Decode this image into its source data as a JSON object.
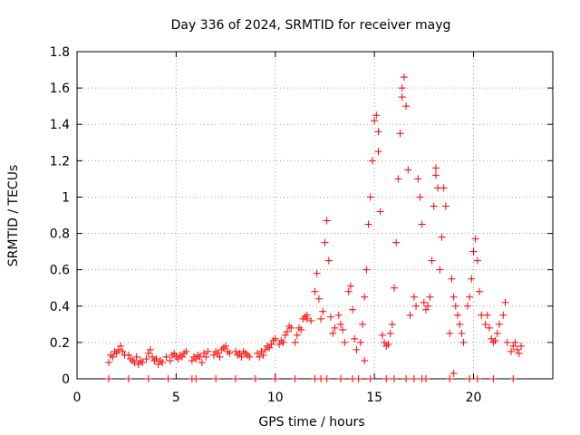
{
  "chart_data": {
    "type": "scatter",
    "title": "Day 336 of 2024, SRMTID for receiver mayg",
    "xlabel": "GPS time / hours",
    "ylabel": "SRMTID / TECUs",
    "xlim": [
      0,
      24
    ],
    "ylim": [
      0,
      1.8
    ],
    "xticks": [
      0,
      5,
      10,
      15,
      20
    ],
    "xtick_labels": [
      "0",
      "5",
      "10",
      "15",
      "20"
    ],
    "yticks": [
      0,
      0.2,
      0.4,
      0.6,
      0.8,
      1.0,
      1.2,
      1.4,
      1.6,
      1.8
    ],
    "ytick_labels": [
      "0",
      "0.2",
      "0.4",
      "0.6",
      "0.8",
      "1",
      "1.2",
      "1.4",
      "1.6",
      "1.8"
    ],
    "grid": true,
    "marker": "+",
    "colors": {
      "series": "#ff0000",
      "grid": "#a0a0a0",
      "axis": "#000000"
    },
    "series": [
      {
        "name": "SRMTID",
        "points": [
          [
            1.6,
            0.09
          ],
          [
            1.7,
            0.13
          ],
          [
            1.8,
            0.12
          ],
          [
            1.9,
            0.15
          ],
          [
            2.0,
            0.14
          ],
          [
            2.1,
            0.16
          ],
          [
            2.2,
            0.18
          ],
          [
            2.3,
            0.15
          ],
          [
            2.4,
            0.13
          ],
          [
            2.6,
            0.13
          ],
          [
            2.7,
            0.11
          ],
          [
            2.8,
            0.1
          ],
          [
            2.9,
            0.09
          ],
          [
            3.0,
            0.12
          ],
          [
            3.1,
            0.08
          ],
          [
            3.2,
            0.1
          ],
          [
            3.3,
            0.09
          ],
          [
            3.5,
            0.11
          ],
          [
            3.6,
            0.14
          ],
          [
            3.7,
            0.16
          ],
          [
            3.8,
            0.12
          ],
          [
            3.9,
            0.1
          ],
          [
            4.0,
            0.11
          ],
          [
            4.1,
            0.08
          ],
          [
            4.2,
            0.1
          ],
          [
            4.3,
            0.09
          ],
          [
            4.5,
            0.12
          ],
          [
            4.7,
            0.1
          ],
          [
            4.8,
            0.13
          ],
          [
            4.9,
            0.14
          ],
          [
            5.0,
            0.12
          ],
          [
            5.1,
            0.11
          ],
          [
            5.2,
            0.13
          ],
          [
            5.3,
            0.12
          ],
          [
            5.4,
            0.14
          ],
          [
            5.5,
            0.15
          ],
          [
            5.8,
            0.1
          ],
          [
            5.9,
            0.12
          ],
          [
            6.0,
            0.11
          ],
          [
            6.1,
            0.13
          ],
          [
            6.2,
            0.12
          ],
          [
            6.3,
            0.09
          ],
          [
            6.4,
            0.14
          ],
          [
            6.5,
            0.12
          ],
          [
            6.6,
            0.15
          ],
          [
            6.9,
            0.13
          ],
          [
            7.0,
            0.15
          ],
          [
            7.1,
            0.14
          ],
          [
            7.2,
            0.12
          ],
          [
            7.3,
            0.16
          ],
          [
            7.4,
            0.17
          ],
          [
            7.5,
            0.18
          ],
          [
            7.6,
            0.15
          ],
          [
            7.7,
            0.14
          ],
          [
            8.0,
            0.15
          ],
          [
            8.1,
            0.13
          ],
          [
            8.2,
            0.14
          ],
          [
            8.3,
            0.12
          ],
          [
            8.4,
            0.15
          ],
          [
            8.5,
            0.14
          ],
          [
            8.6,
            0.13
          ],
          [
            8.7,
            0.12
          ],
          [
            9.1,
            0.14
          ],
          [
            9.2,
            0.12
          ],
          [
            9.3,
            0.15
          ],
          [
            9.4,
            0.13
          ],
          [
            9.5,
            0.16
          ],
          [
            9.6,
            0.18
          ],
          [
            9.7,
            0.17
          ],
          [
            9.8,
            0.19
          ],
          [
            9.9,
            0.21
          ],
          [
            10.0,
            0.22
          ],
          [
            10.2,
            0.19
          ],
          [
            10.3,
            0.21
          ],
          [
            10.4,
            0.2
          ],
          [
            10.5,
            0.24
          ],
          [
            10.6,
            0.26
          ],
          [
            10.7,
            0.29
          ],
          [
            10.8,
            0.28
          ],
          [
            11.0,
            0.2
          ],
          [
            11.1,
            0.24
          ],
          [
            11.2,
            0.28
          ],
          [
            11.3,
            0.27
          ],
          [
            11.4,
            0.33
          ],
          [
            11.5,
            0.34
          ],
          [
            11.6,
            0.33
          ],
          [
            11.8,
            0.32
          ],
          [
            12.0,
            0.48
          ],
          [
            12.1,
            0.58
          ],
          [
            12.2,
            0.44
          ],
          [
            12.3,
            0.33
          ],
          [
            12.4,
            0.37
          ],
          [
            12.5,
            0.75
          ],
          [
            12.6,
            0.87
          ],
          [
            12.7,
            0.65
          ],
          [
            12.8,
            0.34
          ],
          [
            12.9,
            0.25
          ],
          [
            13.0,
            0.28
          ],
          [
            13.2,
            0.35
          ],
          [
            13.3,
            0.3
          ],
          [
            13.4,
            0.27
          ],
          [
            13.5,
            0.2
          ],
          [
            13.7,
            0.48
          ],
          [
            13.8,
            0.51
          ],
          [
            13.9,
            0.38
          ],
          [
            14.0,
            0.22
          ],
          [
            14.1,
            0.16
          ],
          [
            14.3,
            0.2
          ],
          [
            14.4,
            0.3
          ],
          [
            14.5,
            0.45
          ],
          [
            14.6,
            0.6
          ],
          [
            14.7,
            0.85
          ],
          [
            14.8,
            1.0
          ],
          [
            14.9,
            1.2
          ],
          [
            15.0,
            1.42
          ],
          [
            15.1,
            1.45
          ],
          [
            15.2,
            1.25
          ],
          [
            15.3,
            0.92
          ],
          [
            15.4,
            0.24
          ],
          [
            15.5,
            0.2
          ],
          [
            15.6,
            0.18
          ],
          [
            15.7,
            0.19
          ],
          [
            15.8,
            0.25
          ],
          [
            15.9,
            0.3
          ],
          [
            16.0,
            0.5
          ],
          [
            16.1,
            0.75
          ],
          [
            16.2,
            1.1
          ],
          [
            16.3,
            1.35
          ],
          [
            16.4,
            1.6
          ],
          [
            16.5,
            1.66
          ],
          [
            16.6,
            1.5
          ],
          [
            16.7,
            1.15
          ],
          [
            16.8,
            0.35
          ],
          [
            17.0,
            0.45
          ],
          [
            17.1,
            0.4
          ],
          [
            17.2,
            1.1
          ],
          [
            17.3,
            1.0
          ],
          [
            17.4,
            0.85
          ],
          [
            17.5,
            0.42
          ],
          [
            17.6,
            0.38
          ],
          [
            17.7,
            0.4
          ],
          [
            17.8,
            0.45
          ],
          [
            17.9,
            0.65
          ],
          [
            18.0,
            0.95
          ],
          [
            18.1,
            1.16
          ],
          [
            18.2,
            1.05
          ],
          [
            18.3,
            0.6
          ],
          [
            18.4,
            0.78
          ],
          [
            18.5,
            1.05
          ],
          [
            18.6,
            0.95
          ],
          [
            18.8,
            0.25
          ],
          [
            18.9,
            0.55
          ],
          [
            19.0,
            0.45
          ],
          [
            19.1,
            0.4
          ],
          [
            19.2,
            0.35
          ],
          [
            19.3,
            0.3
          ],
          [
            19.4,
            0.25
          ],
          [
            19.5,
            0.2
          ],
          [
            19.7,
            0.4
          ],
          [
            19.8,
            0.45
          ],
          [
            19.9,
            0.55
          ],
          [
            20.0,
            0.7
          ],
          [
            20.1,
            0.77
          ],
          [
            20.2,
            0.65
          ],
          [
            20.3,
            0.48
          ],
          [
            20.4,
            0.35
          ],
          [
            20.6,
            0.3
          ],
          [
            20.7,
            0.35
          ],
          [
            20.8,
            0.28
          ],
          [
            20.9,
            0.22
          ],
          [
            21.0,
            0.2
          ],
          [
            21.1,
            0.21
          ],
          [
            21.2,
            0.25
          ],
          [
            21.3,
            0.3
          ],
          [
            21.5,
            0.35
          ],
          [
            21.6,
            0.42
          ],
          [
            21.7,
            0.2
          ],
          [
            21.9,
            0.15
          ],
          [
            22.0,
            0.18
          ],
          [
            22.1,
            0.2
          ],
          [
            22.2,
            0.16
          ],
          [
            22.3,
            0.14
          ],
          [
            22.4,
            0.18
          ],
          [
            14.5,
            0.1
          ],
          [
            19.0,
            0.03
          ],
          [
            11.6,
            0.35
          ],
          [
            15.2,
            1.36
          ],
          [
            16.4,
            1.55
          ],
          [
            18.1,
            1.12
          ],
          [
            1.6,
            0.0
          ],
          [
            2.6,
            0.0
          ],
          [
            3.6,
            0.0
          ],
          [
            4.6,
            0.0
          ],
          [
            5.8,
            0.0
          ],
          [
            6.0,
            0.0
          ],
          [
            7.0,
            0.0
          ],
          [
            8.0,
            0.0
          ],
          [
            9.0,
            0.0
          ],
          [
            10.0,
            0.0
          ],
          [
            11.0,
            0.0
          ],
          [
            12.0,
            0.0
          ],
          [
            12.3,
            0.0
          ],
          [
            12.6,
            0.0
          ],
          [
            13.3,
            0.0
          ],
          [
            13.9,
            0.0
          ],
          [
            14.2,
            0.0
          ],
          [
            14.8,
            0.0
          ],
          [
            15.6,
            0.0
          ],
          [
            16.0,
            0.0
          ],
          [
            16.6,
            0.0
          ],
          [
            17.0,
            0.0
          ],
          [
            17.4,
            0.0
          ],
          [
            17.6,
            0.0
          ],
          [
            18.8,
            0.0
          ],
          [
            19.8,
            0.0
          ],
          [
            20.2,
            0.0
          ],
          [
            21.0,
            0.0
          ],
          [
            22.0,
            0.0
          ]
        ]
      }
    ]
  }
}
